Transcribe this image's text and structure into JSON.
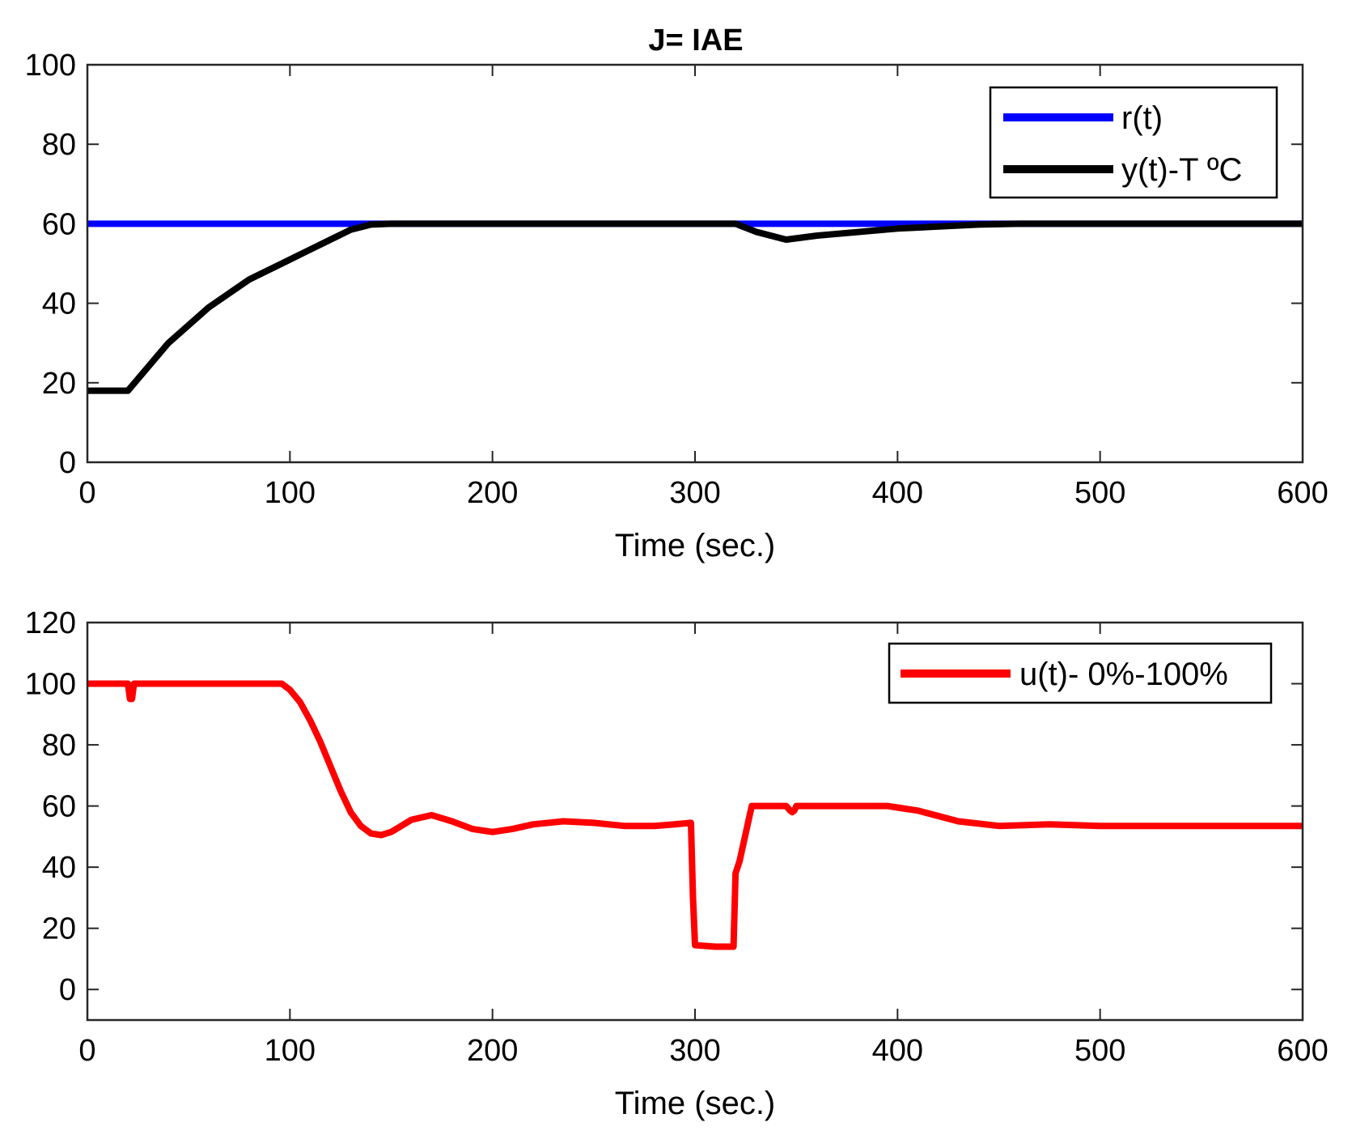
{
  "chart_data": [
    {
      "type": "line",
      "title": "J= IAE",
      "xlabel": "Time (sec.)",
      "ylabel": "",
      "xlim": [
        0,
        600
      ],
      "ylim": [
        0,
        100
      ],
      "xticks": [
        0,
        100,
        200,
        300,
        400,
        500,
        600
      ],
      "yticks": [
        0,
        20,
        40,
        60,
        80,
        100
      ],
      "legend_position": "top-right",
      "series": [
        {
          "name": "r(t)",
          "color": "#0000ff",
          "x": [
            0,
            600
          ],
          "y": [
            60,
            60
          ]
        },
        {
          "name": "y(t)-T ºC",
          "color": "#000000",
          "x": [
            0,
            20,
            40,
            60,
            80,
            100,
            120,
            130,
            140,
            150,
            200,
            300,
            320,
            330,
            345,
            360,
            400,
            440,
            460,
            600
          ],
          "y": [
            18,
            18,
            30,
            39,
            46,
            51,
            56,
            58.5,
            59.8,
            60,
            60,
            60,
            60,
            58,
            56,
            57,
            58.8,
            59.8,
            60,
            60
          ]
        }
      ]
    },
    {
      "type": "line",
      "title": "",
      "xlabel": "Time (sec.)",
      "ylabel": "",
      "xlim": [
        0,
        600
      ],
      "ylim": [
        -10,
        120
      ],
      "xticks": [
        0,
        100,
        200,
        300,
        400,
        500,
        600
      ],
      "yticks": [
        0,
        20,
        40,
        60,
        80,
        100,
        120
      ],
      "legend_position": "top-right",
      "series": [
        {
          "name": "u(t)- 0%-100%",
          "color": "#ff0000",
          "x": [
            0,
            20,
            21,
            22,
            23,
            96,
            100,
            105,
            110,
            115,
            120,
            125,
            130,
            135,
            140,
            145,
            150,
            155,
            160,
            170,
            180,
            190,
            200,
            210,
            220,
            235,
            250,
            265,
            280,
            290,
            298,
            299,
            300,
            310,
            319,
            320,
            322,
            328,
            330,
            345,
            347,
            348,
            349,
            350,
            352,
            395,
            400,
            410,
            430,
            450,
            475,
            500,
            550,
            600
          ],
          "y": [
            100,
            100,
            95,
            95,
            100,
            100,
            98,
            94,
            88,
            81,
            73,
            65,
            58,
            53.5,
            51,
            50.5,
            51.5,
            53.5,
            55.5,
            57,
            55,
            52.5,
            51.5,
            52.5,
            54,
            55,
            54.5,
            53.5,
            53.5,
            54,
            54.5,
            30,
            14.5,
            14,
            14,
            38,
            42,
            60,
            60,
            60,
            58.5,
            58,
            58.5,
            60,
            60,
            60,
            59.5,
            58.5,
            55,
            53.5,
            54,
            53.5,
            53.5,
            53.5
          ]
        }
      ]
    }
  ]
}
